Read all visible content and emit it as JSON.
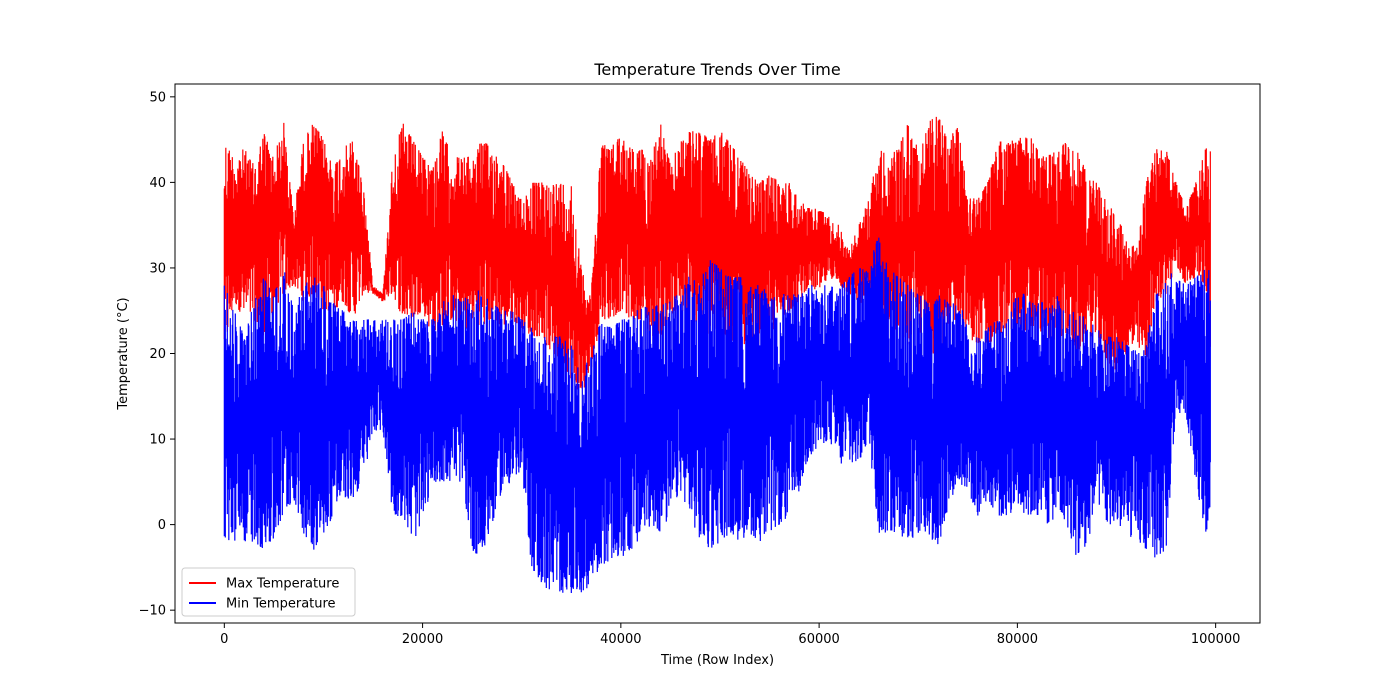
{
  "chart_data": {
    "type": "line",
    "title": "Temperature Trends Over Time",
    "xlabel": "Time (Row Index)",
    "ylabel": "Temperature (°C)",
    "xlim": [
      -4975,
      104475
    ],
    "ylim": [
      -11.5,
      51.5
    ],
    "x_ticks": [
      0,
      20000,
      40000,
      60000,
      80000,
      100000
    ],
    "y_ticks": [
      -10,
      0,
      10,
      20,
      30,
      40,
      50
    ],
    "grid": false,
    "legend_position": "lower-left",
    "series": [
      {
        "name": "Max Temperature",
        "color": "#ff0000",
        "x": [
          0,
          1000,
          2000,
          3000,
          4000,
          5000,
          6000,
          7000,
          8000,
          9000,
          10000,
          11000,
          12000,
          13000,
          14000,
          15000,
          16000,
          17000,
          18000,
          19000,
          20000,
          21000,
          22000,
          23000,
          24000,
          25000,
          26000,
          27000,
          28000,
          29000,
          30000,
          31000,
          32000,
          33000,
          34000,
          35000,
          36000,
          37000,
          38000,
          39000,
          40000,
          41000,
          42000,
          43000,
          44000,
          45000,
          46000,
          47000,
          48000,
          49000,
          50000,
          51000,
          52000,
          53000,
          54000,
          55000,
          56000,
          57000,
          58000,
          59000,
          60000,
          61000,
          62000,
          63000,
          64000,
          65000,
          66000,
          67000,
          68000,
          69000,
          70000,
          71000,
          72000,
          73000,
          74000,
          75000,
          76000,
          77000,
          78000,
          79000,
          80000,
          81000,
          82000,
          83000,
          84000,
          85000,
          86000,
          87000,
          88000,
          89000,
          90000,
          91000,
          92000,
          93000,
          94000,
          95000,
          96000,
          97000,
          98000,
          99000,
          99500
        ],
        "high": [
          45,
          43,
          44,
          42,
          46,
          43,
          47,
          36,
          45,
          47,
          45,
          42,
          44,
          45,
          40,
          28,
          27,
          43,
          47,
          45,
          43,
          42,
          46,
          43,
          43,
          43,
          45,
          44,
          43,
          40,
          38,
          40,
          40,
          40,
          40,
          40,
          30,
          27,
          45,
          44,
          46,
          44,
          44,
          43,
          47,
          42,
          45,
          46,
          46,
          45,
          46,
          45,
          43,
          41,
          40,
          41,
          40,
          40,
          38,
          37,
          37,
          36,
          35,
          32,
          35,
          38,
          44,
          43,
          44,
          47,
          44,
          47,
          48,
          45,
          47,
          40,
          38,
          40,
          45,
          45,
          45,
          46,
          44,
          43,
          44,
          45,
          44,
          41,
          40,
          38,
          36,
          34,
          32,
          40,
          44,
          44,
          40,
          37,
          40,
          44,
          44
        ],
        "low": [
          20,
          26,
          24,
          24,
          22,
          25,
          27,
          28,
          26,
          27,
          25,
          25,
          26,
          24,
          27,
          27,
          26,
          27,
          24,
          24,
          25,
          22,
          23,
          24,
          22,
          24,
          23,
          24,
          23,
          24,
          23,
          22,
          22,
          20,
          19,
          17,
          15,
          18,
          24,
          24,
          25,
          24,
          24,
          22,
          22,
          24,
          24,
          24,
          23,
          22,
          23,
          21,
          22,
          20,
          21,
          22,
          24,
          25,
          26,
          28,
          27,
          29,
          28,
          27,
          26,
          25,
          21,
          24,
          22,
          21,
          23,
          20,
          20,
          21,
          25,
          22,
          21,
          21,
          22,
          22,
          23,
          21,
          24,
          20,
          22,
          22,
          20,
          22,
          22,
          19,
          18,
          20,
          21,
          19,
          26,
          27,
          30,
          28,
          29,
          28,
          19
        ]
      },
      {
        "name": "Min Temperature",
        "color": "#0000ff",
        "x": [
          0,
          1000,
          2000,
          3000,
          4000,
          5000,
          6000,
          7000,
          8000,
          9000,
          10000,
          11000,
          12000,
          13000,
          14000,
          15000,
          16000,
          17000,
          18000,
          19000,
          20000,
          21000,
          22000,
          23000,
          24000,
          25000,
          26000,
          27000,
          28000,
          29000,
          30000,
          31000,
          32000,
          33000,
          34000,
          35000,
          36000,
          37000,
          38000,
          39000,
          40000,
          41000,
          42000,
          43000,
          44000,
          45000,
          46000,
          47000,
          48000,
          49000,
          50000,
          51000,
          52000,
          53000,
          54000,
          55000,
          56000,
          57000,
          58000,
          59000,
          60000,
          61000,
          62000,
          63000,
          64000,
          65000,
          66000,
          67000,
          68000,
          69000,
          70000,
          71000,
          72000,
          73000,
          74000,
          75000,
          76000,
          77000,
          78000,
          79000,
          80000,
          81000,
          82000,
          83000,
          84000,
          85000,
          86000,
          87000,
          88000,
          89000,
          90000,
          91000,
          92000,
          93000,
          94000,
          95000,
          96000,
          97000,
          98000,
          99000,
          99500
        ],
        "high": [
          28,
          25,
          22,
          26,
          29,
          27,
          30,
          25,
          28,
          29,
          28,
          26,
          25,
          24,
          24,
          24,
          24,
          24,
          24,
          25,
          24,
          24,
          26,
          27,
          26,
          28,
          27,
          26,
          25,
          25,
          24,
          23,
          22,
          22,
          22,
          21,
          18,
          20,
          24,
          23,
          24,
          24,
          26,
          25,
          26,
          27,
          27,
          30,
          29,
          31,
          30,
          29,
          29,
          28,
          28,
          27,
          27,
          27,
          27,
          28,
          28,
          28,
          28,
          29,
          30,
          30,
          34,
          30,
          29,
          28,
          27,
          26,
          27,
          26,
          26,
          24,
          22,
          23,
          24,
          25,
          27,
          27,
          26,
          26,
          27,
          25,
          25,
          24,
          23,
          22,
          22,
          21,
          21,
          21,
          28,
          30,
          29,
          28,
          29,
          30,
          30
        ],
        "low": [
          -2,
          -2,
          -2,
          -2,
          -3,
          -2,
          1,
          3,
          -1,
          -3,
          -1,
          1,
          3,
          3,
          5,
          11,
          11,
          1,
          1,
          -2,
          0,
          5,
          5,
          5,
          5,
          -3,
          -4,
          0,
          4,
          5,
          6,
          -5,
          -7,
          -8,
          -8,
          -8,
          -8,
          -7,
          -5,
          -4,
          -4,
          -3,
          -2,
          0,
          -1,
          1,
          4,
          1,
          -2,
          -3,
          -2,
          -1,
          -2,
          -1,
          -2,
          -1,
          0,
          1,
          4,
          8,
          9,
          10,
          7,
          7,
          7,
          10,
          -1,
          -1,
          -1,
          -2,
          -1,
          -1,
          -3,
          2,
          5,
          4,
          1,
          3,
          1,
          1,
          2,
          1,
          1,
          0,
          1,
          0,
          -4,
          -3,
          3,
          0,
          0,
          -1,
          -2,
          -3,
          -4,
          -3,
          13,
          13,
          5,
          -1,
          1
        ]
      }
    ]
  }
}
